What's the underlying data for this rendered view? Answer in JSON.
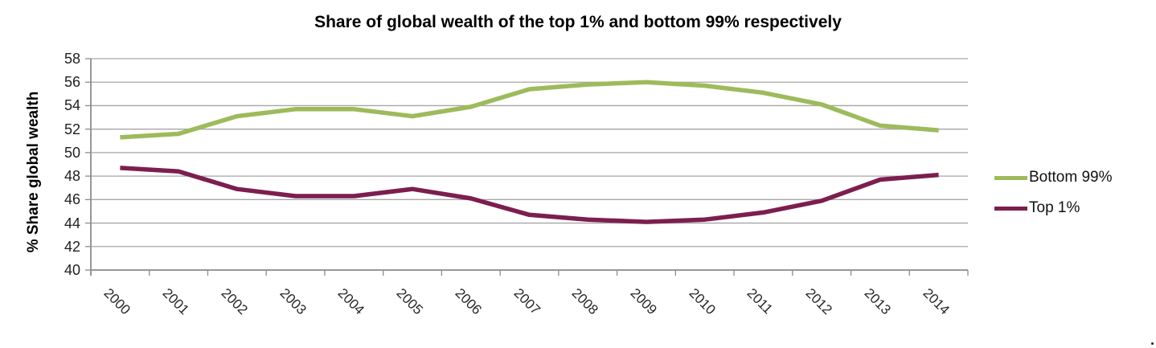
{
  "title": "Share of global wealth of the top 1% and bottom 99% respectively",
  "y_axis": {
    "label": "% Share global wealth",
    "tick_labels": [
      "58",
      "56",
      "54",
      "52",
      "50",
      "48",
      "46",
      "44",
      "42",
      "40"
    ]
  },
  "x_axis": {
    "tick_labels": [
      "2000",
      "2001",
      "2002",
      "2003",
      "2004",
      "2005",
      "2006",
      "2007",
      "2008",
      "2009",
      "2010",
      "2011",
      "2012",
      "2013",
      "2014"
    ]
  },
  "legend": {
    "items": [
      {
        "label": "Bottom 99%",
        "color": "#9DBB5B"
      },
      {
        "label": "Top 1%",
        "color": "#7C1E4F"
      }
    ]
  },
  "colors": {
    "gridline": "#A6A6A6",
    "axis": "#8C8C8C",
    "bottom99": "#9DBB5B",
    "top1": "#7C1E4F"
  },
  "chart_data": {
    "type": "line",
    "title": "Share of global wealth of the top 1% and bottom 99% respectively",
    "x": [
      2000,
      2001,
      2002,
      2003,
      2004,
      2005,
      2006,
      2007,
      2008,
      2009,
      2010,
      2011,
      2012,
      2013,
      2014
    ],
    "series": [
      {
        "name": "Bottom 99%",
        "color": "#9DBB5B",
        "values": [
          51.3,
          51.6,
          53.1,
          53.7,
          53.7,
          53.1,
          53.9,
          55.4,
          55.8,
          56.0,
          55.7,
          55.1,
          54.1,
          52.3,
          51.9
        ]
      },
      {
        "name": "Top 1%",
        "color": "#7C1E4F",
        "values": [
          48.7,
          48.4,
          46.9,
          46.3,
          46.3,
          46.9,
          46.1,
          44.7,
          44.3,
          44.1,
          44.3,
          44.9,
          45.9,
          47.7,
          48.1
        ]
      }
    ],
    "xlabel": "",
    "ylabel": "% Share global wealth",
    "ylim": [
      40,
      58
    ],
    "ytick_step": 2,
    "grid": true,
    "legend_position": "right-middle",
    "x_tick_rotation": 45
  }
}
